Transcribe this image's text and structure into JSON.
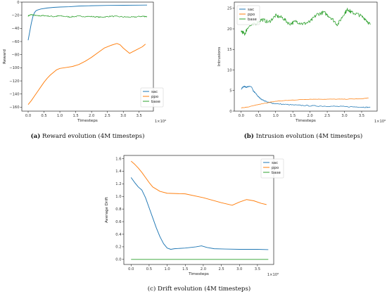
{
  "chart_data": [
    {
      "id": "a",
      "type": "line",
      "ylabel": "Reward",
      "xlabel": "Timesteps",
      "x_multiplier": "1×10⁶",
      "caption_label": "(a)",
      "caption_text": "Reward evolution (4M timesteps)",
      "xlim": [
        -0.2,
        3.95
      ],
      "ylim": [
        -166,
        0
      ],
      "xticks": [
        0.0,
        0.5,
        1.0,
        1.5,
        2.0,
        2.5,
        3.0,
        3.5
      ],
      "xtick_labels": [
        "0.0",
        "0.5",
        "1.0",
        "1.5",
        "2.0",
        "2.5",
        "3.0",
        "3.5"
      ],
      "yticks": [
        0,
        -20,
        -40,
        -60,
        -80,
        -100,
        -120,
        -140,
        -160
      ],
      "ytick_labels": [
        "0",
        "−20",
        "−40",
        "−60",
        "−80",
        "−100",
        "−120",
        "−140",
        "−160"
      ],
      "legend_position": "lower-right",
      "series": [
        {
          "name": "sac",
          "color": "#1f77b4",
          "noise": 0,
          "x": [
            0.0,
            0.05,
            0.1,
            0.15,
            0.2,
            0.25,
            0.3,
            0.4,
            0.6,
            0.8,
            1.0,
            1.3,
            1.6,
            2.0,
            2.5,
            3.0,
            3.5,
            3.75
          ],
          "y": [
            -58,
            -45,
            -32,
            -22,
            -16,
            -13,
            -12,
            -10.5,
            -9,
            -8,
            -7.5,
            -7,
            -6,
            -5.5,
            -5,
            -4.8,
            -4.6,
            -4.5
          ]
        },
        {
          "name": "ppo",
          "color": "#ff7f0e",
          "noise": 0,
          "x": [
            0.0,
            0.1,
            0.2,
            0.3,
            0.4,
            0.5,
            0.6,
            0.7,
            0.8,
            0.9,
            1.0,
            1.2,
            1.4,
            1.6,
            1.8,
            2.0,
            2.2,
            2.4,
            2.6,
            2.8,
            2.9,
            3.0,
            3.1,
            3.2,
            3.4,
            3.6,
            3.7
          ],
          "y": [
            -156,
            -150,
            -143,
            -136,
            -129,
            -122,
            -116,
            -111,
            -107,
            -103,
            -101,
            -99.5,
            -98,
            -95,
            -90,
            -84,
            -77,
            -70,
            -66,
            -63,
            -65,
            -70,
            -74,
            -78,
            -73,
            -68,
            -64
          ]
        },
        {
          "name": "base",
          "color": "#2ca02c",
          "noise": 0.9,
          "x": [
            0.0,
            0.1,
            0.3,
            0.5,
            0.8,
            1.0,
            1.3,
            1.6,
            2.0,
            2.3,
            2.6,
            3.0,
            3.3,
            3.6,
            3.75
          ],
          "y": [
            -21,
            -19,
            -21,
            -20.5,
            -22,
            -21,
            -22.5,
            -21.5,
            -22,
            -23,
            -21.5,
            -22.5,
            -23,
            -21.5,
            -22
          ]
        }
      ]
    },
    {
      "id": "b",
      "type": "line",
      "ylabel": "Intrusions",
      "xlabel": "Timesteps",
      "x_multiplier": "1×10⁶",
      "caption_label": "(b)",
      "caption_text": "Intrusion evolution (4M timesteps)",
      "xlim": [
        -0.2,
        3.95
      ],
      "ylim": [
        0,
        26.5
      ],
      "xticks": [
        0.0,
        0.5,
        1.0,
        1.5,
        2.0,
        2.5,
        3.0,
        3.5
      ],
      "xtick_labels": [
        "0.0",
        "0.5",
        "1.0",
        "1.5",
        "2.0",
        "2.5",
        "3.0",
        "3.5"
      ],
      "yticks": [
        0,
        5,
        10,
        15,
        20,
        25
      ],
      "ytick_labels": [
        "0",
        "5",
        "10",
        "15",
        "20",
        "25"
      ],
      "legend_position": "upper-left",
      "series": [
        {
          "name": "sac",
          "color": "#1f77b4",
          "noise": 0.12,
          "x": [
            0.0,
            0.05,
            0.1,
            0.15,
            0.2,
            0.3,
            0.35,
            0.4,
            0.5,
            0.6,
            0.8,
            1.0,
            1.5,
            2.0,
            2.5,
            3.0,
            3.5,
            3.75
          ],
          "y": [
            5.3,
            5.9,
            6.0,
            5.8,
            6.0,
            5.9,
            4.9,
            4.5,
            3.5,
            2.8,
            2.1,
            1.8,
            1.5,
            1.3,
            1.2,
            1.1,
            1.0,
            0.9
          ]
        },
        {
          "name": "ppo",
          "color": "#ff7f0e",
          "noise": 0.05,
          "x": [
            0.0,
            0.2,
            0.5,
            0.8,
            1.0,
            1.5,
            2.0,
            2.5,
            3.0,
            3.5,
            3.7
          ],
          "y": [
            0.8,
            1.0,
            1.6,
            2.1,
            2.4,
            2.7,
            2.9,
            2.9,
            2.9,
            3.0,
            3.2
          ]
        },
        {
          "name": "base",
          "color": "#2ca02c",
          "noise": 0.45,
          "x": [
            0.0,
            0.1,
            0.2,
            0.4,
            0.6,
            0.8,
            1.0,
            1.2,
            1.4,
            1.6,
            1.8,
            2.0,
            2.2,
            2.4,
            2.6,
            2.8,
            3.0,
            3.1,
            3.2,
            3.4,
            3.6,
            3.75
          ],
          "y": [
            19.5,
            18.7,
            20.5,
            21.2,
            22.3,
            21.6,
            23.2,
            22.7,
            21.2,
            21.8,
            21.2,
            21.7,
            23.5,
            24.0,
            22.8,
            21.0,
            23.8,
            24.8,
            24.0,
            23.5,
            22.5,
            21.0
          ]
        }
      ]
    },
    {
      "id": "c",
      "type": "line",
      "ylabel": "Average Drift",
      "xlabel": "Timesteps",
      "x_multiplier": "1×10⁶",
      "caption_label": "",
      "caption_text": "(c) Drift evolution (4M timesteps)",
      "xlim": [
        -0.2,
        3.95
      ],
      "ylim": [
        -0.08,
        1.65
      ],
      "xticks": [
        0.0,
        0.5,
        1.0,
        1.5,
        2.0,
        2.5,
        3.0,
        3.5
      ],
      "xtick_labels": [
        "0.0",
        "0.5",
        "1.0",
        "1.5",
        "2.0",
        "2.5",
        "3.0",
        "3.5"
      ],
      "yticks": [
        0.0,
        0.2,
        0.4,
        0.6,
        0.8,
        1.0,
        1.2,
        1.4,
        1.6
      ],
      "ytick_labels": [
        "0.0",
        "0.2",
        "0.4",
        "0.6",
        "0.8",
        "1.0",
        "1.2",
        "1.4",
        "1.6"
      ],
      "legend_position": "upper-right",
      "series": [
        {
          "name": "sac",
          "color": "#1f77b4",
          "noise": 0,
          "x": [
            0.0,
            0.1,
            0.2,
            0.3,
            0.4,
            0.5,
            0.6,
            0.7,
            0.8,
            0.9,
            1.0,
            1.1,
            1.2,
            1.5,
            1.8,
            1.95,
            2.1,
            2.3,
            2.6,
            3.0,
            3.5,
            3.8
          ],
          "y": [
            1.3,
            1.22,
            1.15,
            1.1,
            0.98,
            0.82,
            0.66,
            0.5,
            0.36,
            0.25,
            0.18,
            0.16,
            0.17,
            0.18,
            0.2,
            0.215,
            0.19,
            0.17,
            0.165,
            0.16,
            0.16,
            0.155
          ]
        },
        {
          "name": "ppo",
          "color": "#ff7f0e",
          "noise": 0,
          "x": [
            0.0,
            0.1,
            0.2,
            0.3,
            0.4,
            0.5,
            0.6,
            0.8,
            1.0,
            1.5,
            2.0,
            2.5,
            2.8,
            3.0,
            3.2,
            3.4,
            3.6,
            3.75
          ],
          "y": [
            1.56,
            1.51,
            1.45,
            1.38,
            1.3,
            1.22,
            1.15,
            1.08,
            1.05,
            1.04,
            0.98,
            0.9,
            0.86,
            0.91,
            0.95,
            0.93,
            0.89,
            0.87
          ]
        },
        {
          "name": "base",
          "color": "#2ca02c",
          "noise": 0,
          "x": [
            0.0,
            3.8
          ],
          "y": [
            0.0,
            0.0
          ]
        }
      ]
    }
  ]
}
